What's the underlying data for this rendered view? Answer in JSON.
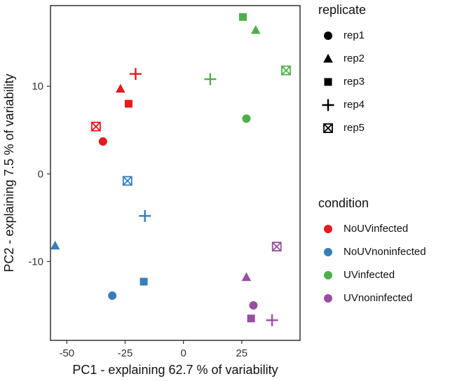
{
  "legend": {
    "replicate": {
      "title": "replicate",
      "items": [
        {
          "label": "rep1",
          "shape": "circle"
        },
        {
          "label": "rep2",
          "shape": "triangle"
        },
        {
          "label": "rep3",
          "shape": "square"
        },
        {
          "label": "rep4",
          "shape": "plus"
        },
        {
          "label": "rep5",
          "shape": "crossed-square"
        }
      ],
      "symbol_color": "#000000"
    },
    "condition": {
      "title": "condition",
      "items": [
        {
          "label": "NoUVinfected",
          "color": "#E41A1C"
        },
        {
          "label": "NoUVnoninfected",
          "color": "#377EB8"
        },
        {
          "label": "UVinfected",
          "color": "#4DAF4A"
        },
        {
          "label": "UVnoninfected",
          "color": "#984EA3"
        }
      ]
    }
  },
  "chart_data": {
    "type": "scatter",
    "title": "",
    "xlabel": "PC1 - explaining 62.7 % of variability",
    "ylabel": "PC2 - explaining 7.5 % of variability",
    "xlim": [
      -57,
      50
    ],
    "ylim": [
      -19,
      19.2
    ],
    "xticks": [
      -50,
      -25,
      0,
      25
    ],
    "yticks": [
      -10,
      0,
      10
    ],
    "grid": false,
    "legend_position": "right",
    "series": [
      {
        "name": "NoUVinfected",
        "color": "#E41A1C",
        "points": [
          {
            "replicate": "rep1",
            "shape": "circle",
            "x": -34.5,
            "y": 3.7
          },
          {
            "replicate": "rep2",
            "shape": "triangle",
            "x": -27,
            "y": 9.7
          },
          {
            "replicate": "rep3",
            "shape": "square",
            "x": -23.5,
            "y": 8.0
          },
          {
            "replicate": "rep4",
            "shape": "plus",
            "x": -20.5,
            "y": 11.4
          },
          {
            "replicate": "rep5",
            "shape": "crossed-square",
            "x": -37.5,
            "y": 5.4
          }
        ]
      },
      {
        "name": "NoUVnoninfected",
        "color": "#377EB8",
        "points": [
          {
            "replicate": "rep1",
            "shape": "circle",
            "x": -30.5,
            "y": -13.9
          },
          {
            "replicate": "rep2",
            "shape": "triangle",
            "x": -55,
            "y": -8.2
          },
          {
            "replicate": "rep3",
            "shape": "square",
            "x": -17,
            "y": -12.3
          },
          {
            "replicate": "rep4",
            "shape": "plus",
            "x": -16.5,
            "y": -4.8
          },
          {
            "replicate": "rep5",
            "shape": "crossed-square",
            "x": -24,
            "y": -0.8
          }
        ]
      },
      {
        "name": "UVinfected",
        "color": "#4DAF4A",
        "points": [
          {
            "replicate": "rep1",
            "shape": "circle",
            "x": 27,
            "y": 6.3
          },
          {
            "replicate": "rep2",
            "shape": "triangle",
            "x": 31,
            "y": 16.4
          },
          {
            "replicate": "rep3",
            "shape": "square",
            "x": 25.5,
            "y": 17.9
          },
          {
            "replicate": "rep4",
            "shape": "plus",
            "x": 11.5,
            "y": 10.8
          },
          {
            "replicate": "rep5",
            "shape": "crossed-square",
            "x": 44,
            "y": 11.8
          }
        ]
      },
      {
        "name": "UVnoninfected",
        "color": "#984EA3",
        "points": [
          {
            "replicate": "rep1",
            "shape": "circle",
            "x": 30,
            "y": -15.0
          },
          {
            "replicate": "rep2",
            "shape": "triangle",
            "x": 27,
            "y": -11.8
          },
          {
            "replicate": "rep3",
            "shape": "square",
            "x": 29,
            "y": -16.5
          },
          {
            "replicate": "rep4",
            "shape": "plus",
            "x": 38,
            "y": -16.7
          },
          {
            "replicate": "rep5",
            "shape": "crossed-square",
            "x": 40,
            "y": -8.3
          }
        ]
      }
    ]
  }
}
